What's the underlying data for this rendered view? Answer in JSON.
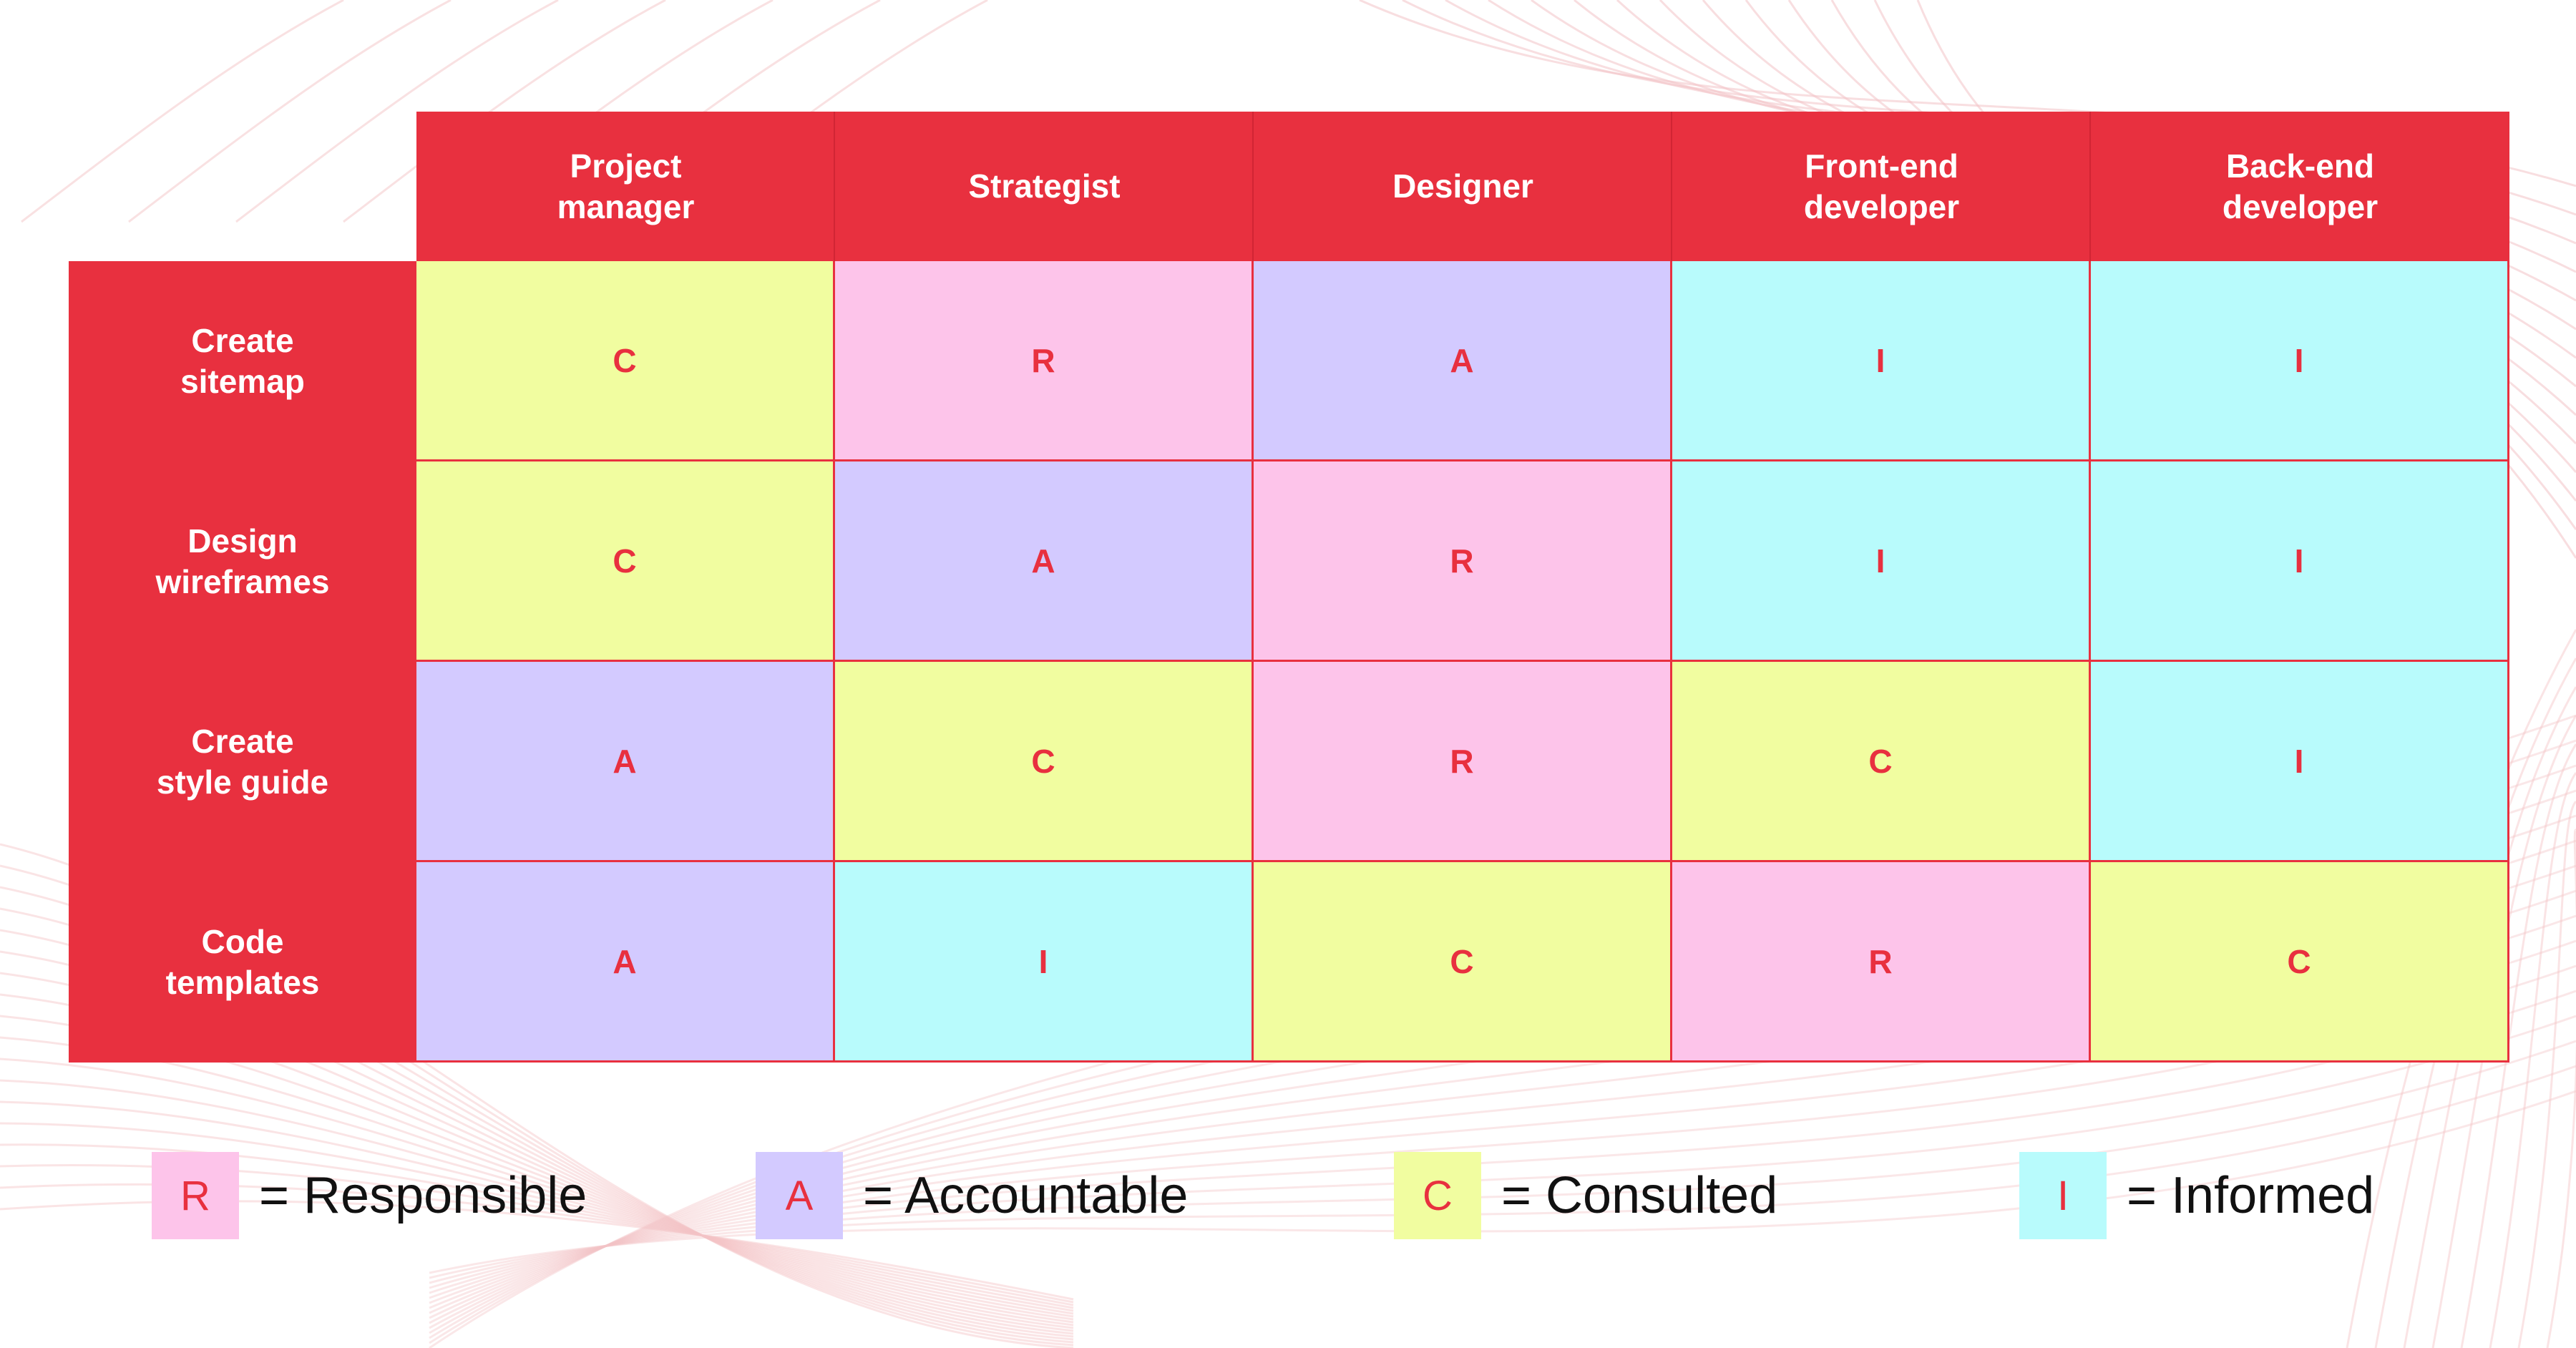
{
  "colors": {
    "header_red": "#e8303f",
    "letter_red": "#e8303f",
    "responsible": "#fdc4ea",
    "accountable": "#d3caff",
    "consulted": "#f1fda0",
    "informed": "#b8fbfc",
    "bg_line": "#f3c3c6"
  },
  "codes": {
    "R": {
      "name": "Responsible",
      "color": "#fdc4ea"
    },
    "A": {
      "name": "Accountable",
      "color": "#d3caff"
    },
    "C": {
      "name": "Consulted",
      "color": "#f1fda0"
    },
    "I": {
      "name": "Informed",
      "color": "#b8fbfc"
    }
  },
  "matrix": {
    "roles": [
      {
        "id": "project-manager",
        "label": "Project\nmanager"
      },
      {
        "id": "strategist",
        "label": "Strategist"
      },
      {
        "id": "designer",
        "label": "Designer"
      },
      {
        "id": "front-end-developer",
        "label": "Front-end\ndeveloper"
      },
      {
        "id": "back-end-developer",
        "label": "Back-end\ndeveloper"
      }
    ],
    "tasks": [
      {
        "id": "create-sitemap",
        "label": "Create\nsitemap",
        "assignments": [
          "C",
          "R",
          "A",
          "I",
          "I"
        ]
      },
      {
        "id": "design-wireframes",
        "label": "Design\nwireframes",
        "assignments": [
          "C",
          "A",
          "R",
          "I",
          "I"
        ]
      },
      {
        "id": "create-style-guide",
        "label": "Create\nstyle guide",
        "assignments": [
          "A",
          "C",
          "R",
          "C",
          "I"
        ]
      },
      {
        "id": "code-templates",
        "label": "Code\ntemplates",
        "assignments": [
          "A",
          "I",
          "C",
          "R",
          "C"
        ]
      }
    ]
  },
  "legend": [
    {
      "code": "R",
      "label": "= Responsible"
    },
    {
      "code": "A",
      "label": "= Accountable"
    },
    {
      "code": "C",
      "label": "= Consulted"
    },
    {
      "code": "I",
      "label": "= Informed"
    }
  ]
}
